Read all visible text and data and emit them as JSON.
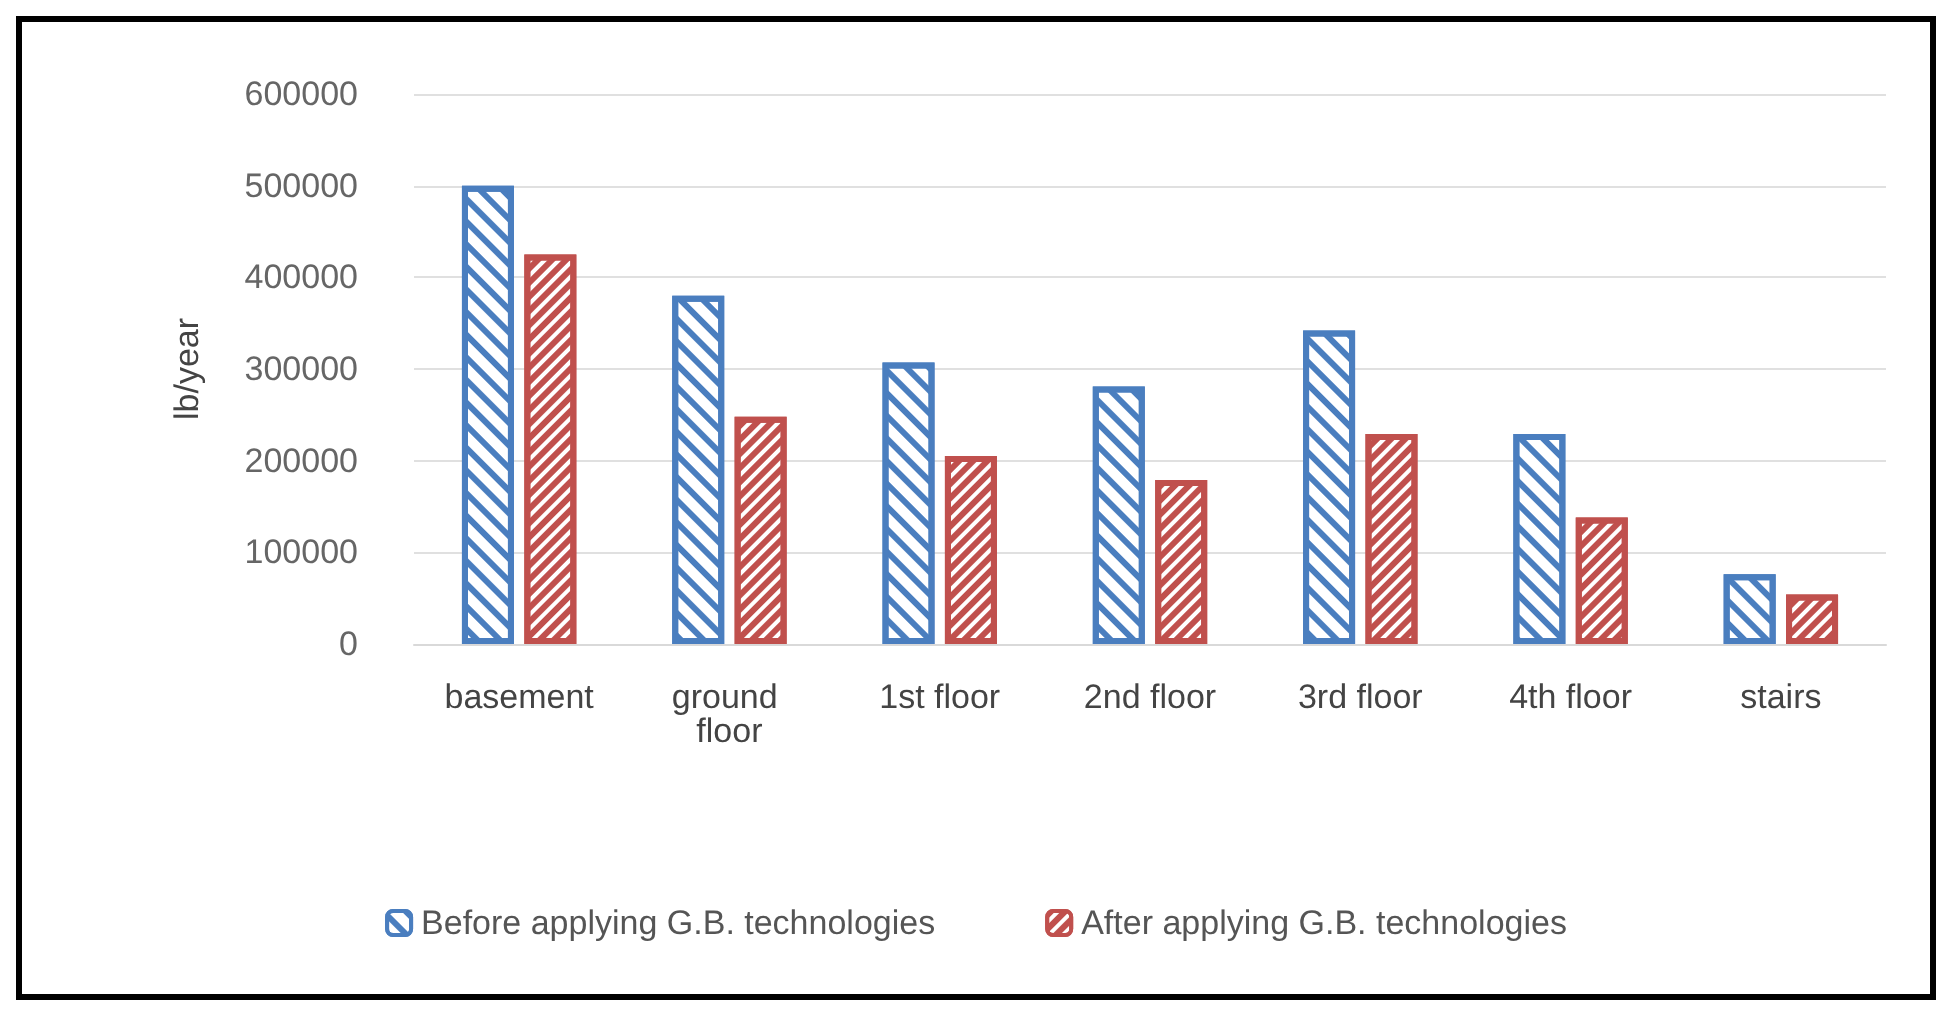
{
  "chart_data": {
    "type": "bar",
    "ylabel": "lb/year",
    "categories": [
      "basement",
      "ground floor",
      "1st floor",
      "2nd floor",
      "3rd floor",
      "4th floor",
      "stairs"
    ],
    "series": [
      {
        "name": "Before applying G.B. technologies",
        "color": "#4a7ebf",
        "values": [
          500000,
          380000,
          307000,
          281000,
          342000,
          229000,
          76000
        ]
      },
      {
        "name": "After applying G.B. technologies",
        "color": "#c0504d",
        "values": [
          425000,
          248000,
          205000,
          179000,
          229000,
          138000,
          54000
        ]
      }
    ],
    "ylim": [
      0,
      600000
    ],
    "yticks": [
      0,
      100000,
      200000,
      300000,
      400000,
      500000,
      600000
    ],
    "grid": "y",
    "legend": "bottom"
  }
}
